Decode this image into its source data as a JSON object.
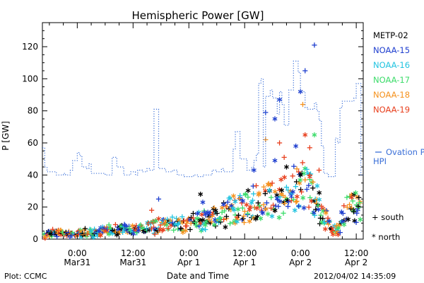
{
  "footer": {
    "plot_label": "Plot: CCMC",
    "timestamp": "2012/04/02 14:35:09"
  },
  "chart_data": {
    "type": "scatter",
    "title": "Hemispheric Power [GW]",
    "xlabel": "Date and Time",
    "ylabel": "P [GW]",
    "ylim": [
      0,
      135
    ],
    "xlim": [
      -7.5,
      61.5
    ],
    "x_unit": "hours after 2012-03-31 00:00 UT",
    "yticks": [
      0,
      20,
      40,
      60,
      80,
      100,
      120
    ],
    "xticks": [
      {
        "x": 0,
        "time": "0:00",
        "date": "Mar31"
      },
      {
        "x": 12,
        "time": "12:00",
        "date": "Mar31"
      },
      {
        "x": 24,
        "time": "0:00",
        "date": "Apr 1"
      },
      {
        "x": 36,
        "time": "12:00",
        "date": "Apr 1"
      },
      {
        "x": 48,
        "time": "0:00",
        "date": "Apr 2"
      },
      {
        "x": 60,
        "time": "12:00",
        "date": "Apr 2"
      }
    ],
    "grid": false,
    "legend_placement": "right",
    "satellites": [
      {
        "name": "METP-02",
        "color": "#000000"
      },
      {
        "name": "NOAA-15",
        "color": "#1f3fcf"
      },
      {
        "name": "NOAA-16",
        "color": "#22c4e0"
      },
      {
        "name": "NOAA-17",
        "color": "#3cdc6a"
      },
      {
        "name": "NOAA-18",
        "color": "#f5921e"
      },
      {
        "name": "NOAA-19",
        "color": "#e8401e"
      }
    ],
    "markers": [
      {
        "symbol": "+",
        "name": "south"
      },
      {
        "symbol": "*",
        "name": "north"
      }
    ],
    "ovation_series": {
      "name": "Ovation Prime HPI",
      "color": "#3a6fd8",
      "points": [
        [
          -7.5,
          57
        ],
        [
          -7,
          57
        ],
        [
          -7,
          45
        ],
        [
          -6.5,
          45
        ],
        [
          -6.5,
          42
        ],
        [
          -4.5,
          42
        ],
        [
          -4.5,
          40
        ],
        [
          -3,
          40
        ],
        [
          -3,
          41
        ],
        [
          -2.5,
          41
        ],
        [
          -2.5,
          40
        ],
        [
          -1.5,
          40
        ],
        [
          -1.5,
          43
        ],
        [
          -1,
          43
        ],
        [
          -1,
          49
        ],
        [
          0,
          49
        ],
        [
          0,
          54
        ],
        [
          0.5,
          54
        ],
        [
          0.5,
          52
        ],
        [
          1,
          52
        ],
        [
          1,
          45
        ],
        [
          2,
          45
        ],
        [
          2,
          44
        ],
        [
          2.5,
          44
        ],
        [
          2.5,
          47
        ],
        [
          3,
          47
        ],
        [
          3,
          41
        ],
        [
          6,
          41
        ],
        [
          6,
          40
        ],
        [
          7.5,
          40
        ],
        [
          7.5,
          51
        ],
        [
          8.5,
          51
        ],
        [
          8.5,
          45
        ],
        [
          10,
          45
        ],
        [
          10,
          40
        ],
        [
          11.5,
          40
        ],
        [
          11.5,
          42
        ],
        [
          12.5,
          42
        ],
        [
          12.5,
          40
        ],
        [
          13,
          40
        ],
        [
          13,
          43
        ],
        [
          14,
          43
        ],
        [
          14,
          42
        ],
        [
          15,
          42
        ],
        [
          15,
          44
        ],
        [
          15.5,
          44
        ],
        [
          15.5,
          43
        ],
        [
          16.5,
          43
        ],
        [
          16.5,
          81
        ],
        [
          17.5,
          81
        ],
        [
          17.5,
          44
        ],
        [
          19,
          44
        ],
        [
          19,
          42
        ],
        [
          20.5,
          42
        ],
        [
          20.5,
          43
        ],
        [
          21.5,
          43
        ],
        [
          21.5,
          40
        ],
        [
          23,
          40
        ],
        [
          23,
          39
        ],
        [
          25,
          39
        ],
        [
          25,
          40
        ],
        [
          26,
          40
        ],
        [
          26,
          39
        ],
        [
          27,
          39
        ],
        [
          27,
          40
        ],
        [
          29,
          40
        ],
        [
          29,
          43
        ],
        [
          30,
          43
        ],
        [
          30,
          42
        ],
        [
          31,
          42
        ],
        [
          31,
          44
        ],
        [
          31.5,
          44
        ],
        [
          31.5,
          42
        ],
        [
          33.5,
          42
        ],
        [
          33.5,
          56
        ],
        [
          34,
          56
        ],
        [
          34,
          67
        ],
        [
          35,
          67
        ],
        [
          35,
          50
        ],
        [
          36.5,
          50
        ],
        [
          36.5,
          43
        ],
        [
          37.5,
          43
        ],
        [
          37.5,
          45
        ],
        [
          38,
          45
        ],
        [
          38,
          49
        ],
        [
          38.5,
          49
        ],
        [
          38.5,
          53
        ],
        [
          39,
          53
        ],
        [
          39,
          97
        ],
        [
          39.5,
          97
        ],
        [
          39.5,
          100
        ],
        [
          40,
          100
        ],
        [
          40,
          45
        ],
        [
          40.5,
          45
        ],
        [
          40.5,
          89
        ],
        [
          41.5,
          89
        ],
        [
          41.5,
          93
        ],
        [
          42,
          93
        ],
        [
          42,
          88
        ],
        [
          43,
          88
        ],
        [
          43,
          78
        ],
        [
          43.5,
          78
        ],
        [
          43.5,
          92
        ],
        [
          44,
          92
        ],
        [
          44,
          84
        ],
        [
          44.5,
          84
        ],
        [
          44.5,
          71
        ],
        [
          45.5,
          71
        ],
        [
          45.5,
          93
        ],
        [
          46.5,
          93
        ],
        [
          46.5,
          111
        ],
        [
          47.5,
          111
        ],
        [
          47.5,
          104
        ],
        [
          48,
          104
        ],
        [
          48,
          92
        ],
        [
          49,
          92
        ],
        [
          49,
          82
        ],
        [
          49.5,
          82
        ],
        [
          49.5,
          81
        ],
        [
          51,
          81
        ],
        [
          51,
          85
        ],
        [
          51.5,
          85
        ],
        [
          51.5,
          80
        ],
        [
          52,
          80
        ],
        [
          52,
          74
        ],
        [
          52.5,
          74
        ],
        [
          52.5,
          58
        ],
        [
          53,
          58
        ],
        [
          53,
          41
        ],
        [
          54,
          41
        ],
        [
          54,
          39
        ],
        [
          55.5,
          39
        ],
        [
          55.5,
          63
        ],
        [
          56,
          63
        ],
        [
          56,
          60
        ],
        [
          56.5,
          60
        ],
        [
          56.5,
          82
        ],
        [
          57,
          82
        ],
        [
          57,
          86
        ],
        [
          59.5,
          86
        ],
        [
          59.5,
          88
        ],
        [
          60,
          88
        ],
        [
          60,
          97
        ],
        [
          61,
          97
        ],
        [
          61,
          40
        ],
        [
          61.5,
          40
        ]
      ]
    },
    "sample_points": [
      {
        "x": 51,
        "y": 121,
        "sat": "NOAA-15",
        "symbol": "+"
      },
      {
        "x": 49,
        "y": 105,
        "sat": "NOAA-15",
        "symbol": "+"
      },
      {
        "x": 48,
        "y": 92,
        "sat": "NOAA-15",
        "symbol": "*"
      },
      {
        "x": 43.5,
        "y": 87,
        "sat": "NOAA-15",
        "symbol": "*"
      },
      {
        "x": 40.5,
        "y": 79,
        "sat": "NOAA-15",
        "symbol": "+"
      },
      {
        "x": 42.5,
        "y": 75,
        "sat": "NOAA-15",
        "symbol": "*"
      },
      {
        "x": 47,
        "y": 58,
        "sat": "NOAA-15",
        "symbol": "*"
      },
      {
        "x": 42.5,
        "y": 49,
        "sat": "NOAA-15",
        "symbol": "*"
      },
      {
        "x": 38,
        "y": 43,
        "sat": "NOAA-15",
        "symbol": "*"
      },
      {
        "x": 17.5,
        "y": 25,
        "sat": "NOAA-15",
        "symbol": "+"
      },
      {
        "x": 27,
        "y": 23,
        "sat": "NOAA-15",
        "symbol": "*"
      },
      {
        "x": 51,
        "y": 65,
        "sat": "NOAA-17",
        "symbol": "*"
      },
      {
        "x": 48.5,
        "y": 84,
        "sat": "NOAA-18",
        "symbol": "+"
      },
      {
        "x": 40.5,
        "y": 62,
        "sat": "NOAA-18",
        "symbol": "+"
      },
      {
        "x": 43.5,
        "y": 60,
        "sat": "NOAA-19",
        "symbol": "+"
      },
      {
        "x": 49,
        "y": 65,
        "sat": "NOAA-19",
        "symbol": "*"
      },
      {
        "x": 50,
        "y": 57,
        "sat": "NOAA-19",
        "symbol": "+"
      },
      {
        "x": 50,
        "y": 40,
        "sat": "NOAA-19",
        "symbol": "+"
      },
      {
        "x": 44.5,
        "y": 51,
        "sat": "NOAA-19",
        "symbol": "+"
      },
      {
        "x": 52,
        "y": 43,
        "sat": "NOAA-19",
        "symbol": "+"
      },
      {
        "x": 26.5,
        "y": 28,
        "sat": "METP-02",
        "symbol": "*"
      },
      {
        "x": 45,
        "y": 45,
        "sat": "METP-02",
        "symbol": "*"
      },
      {
        "x": 48,
        "y": 40,
        "sat": "METP-02",
        "symbol": "*"
      },
      {
        "x": 16,
        "y": 18,
        "sat": "NOAA-19",
        "symbol": "+"
      },
      {
        "x": 27,
        "y": 12,
        "sat": "METP-02",
        "symbol": "*"
      },
      {
        "x": 59,
        "y": 26,
        "sat": "NOAA-19",
        "symbol": "*"
      }
    ],
    "envelope": [
      [
        -7,
        3
      ],
      [
        -5,
        5
      ],
      [
        -2,
        3
      ],
      [
        2,
        4
      ],
      [
        5,
        5
      ],
      [
        8,
        6
      ],
      [
        11,
        6
      ],
      [
        14,
        7
      ],
      [
        17,
        8
      ],
      [
        20,
        9
      ],
      [
        23,
        10
      ],
      [
        26,
        12
      ],
      [
        29,
        14
      ],
      [
        32,
        17
      ],
      [
        35,
        20
      ],
      [
        38,
        24
      ],
      [
        41,
        26
      ],
      [
        44,
        29
      ],
      [
        46,
        31
      ],
      [
        48,
        35
      ],
      [
        49.5,
        36
      ],
      [
        51,
        28
      ],
      [
        52,
        22
      ],
      [
        53,
        16
      ],
      [
        54,
        10
      ],
      [
        55,
        5
      ],
      [
        56,
        6
      ],
      [
        57,
        14
      ],
      [
        58,
        20
      ],
      [
        59,
        22
      ],
      [
        60,
        20
      ],
      [
        61,
        19
      ]
    ]
  }
}
